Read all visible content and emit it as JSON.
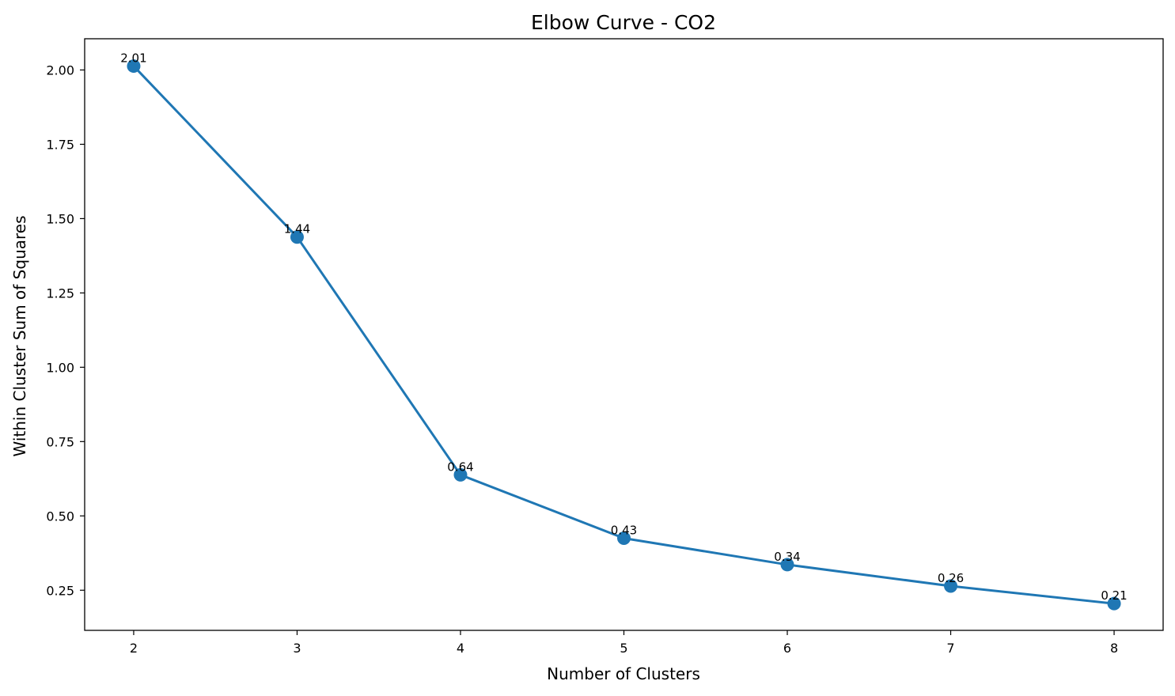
{
  "chart_data": {
    "type": "line",
    "title": "Elbow Curve - CO2",
    "xlabel": "Number of Clusters",
    "ylabel": "Within Cluster Sum of Squares",
    "x": [
      2,
      3,
      4,
      5,
      6,
      7,
      8
    ],
    "series": [
      {
        "values": [
          2.013,
          1.438,
          0.638,
          0.425,
          0.336,
          0.264,
          0.205
        ]
      }
    ],
    "data_labels": [
      "2.01",
      "1.44",
      "0.64",
      "0.43",
      "0.34",
      "0.26",
      "0.21"
    ],
    "x_ticks": [
      2,
      3,
      4,
      5,
      6,
      7,
      8
    ],
    "x_tick_labels": [
      "2",
      "3",
      "4",
      "5",
      "6",
      "7",
      "8"
    ],
    "y_ticks": [
      0.25,
      0.5,
      0.75,
      1.0,
      1.25,
      1.5,
      1.75,
      2.0
    ],
    "y_tick_labels": [
      "0.25",
      "0.50",
      "0.75",
      "1.00",
      "1.25",
      "1.50",
      "1.75",
      "2.00"
    ],
    "xlim": [
      1.7,
      8.3
    ],
    "ylim": [
      0.115,
      2.105
    ],
    "grid": false,
    "legend": "none",
    "colors": {
      "series": "#1f77b4",
      "axes": "#000000"
    }
  }
}
